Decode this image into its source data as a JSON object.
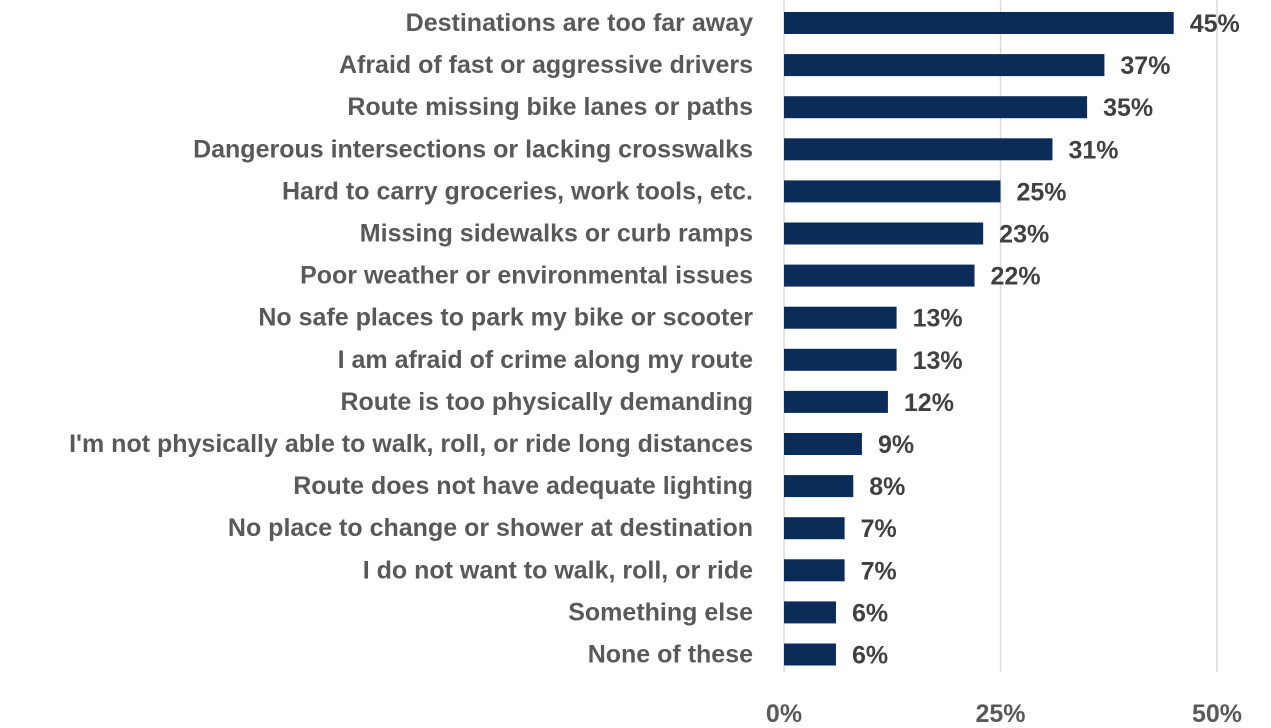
{
  "chart_data": {
    "type": "bar",
    "orientation": "horizontal",
    "categories": [
      "Destinations are too far away",
      "Afraid of fast or aggressive drivers",
      "Route missing bike lanes or paths",
      "Dangerous intersections or lacking crosswalks",
      "Hard to carry groceries, work tools, etc.",
      "Missing sidewalks or curb ramps",
      "Poor weather or environmental issues",
      "No safe places to park my bike or scooter",
      "I am afraid of crime along my route",
      "Route is too physically demanding",
      "I'm not physically able to walk, roll, or ride long distances",
      "Route does not have adequate lighting",
      "No place to change or shower at destination",
      "I do not want to walk, roll, or ride",
      "Something else",
      "None of these"
    ],
    "values": [
      45,
      37,
      35,
      31,
      25,
      23,
      22,
      13,
      13,
      12,
      9,
      8,
      7,
      7,
      6,
      6
    ],
    "value_labels": [
      "45%",
      "37%",
      "35%",
      "31%",
      "25%",
      "23%",
      "22%",
      "13%",
      "13%",
      "12%",
      "9%",
      "8%",
      "7%",
      "7%",
      "6%",
      "6%"
    ],
    "xlim": [
      0,
      50
    ],
    "xticks": [
      0,
      25,
      50
    ],
    "xtick_labels": [
      "0%",
      "25%",
      "50%"
    ],
    "gridlines": true,
    "bar_color": "#0b2c59",
    "grid_color": "#d9d9d9"
  }
}
